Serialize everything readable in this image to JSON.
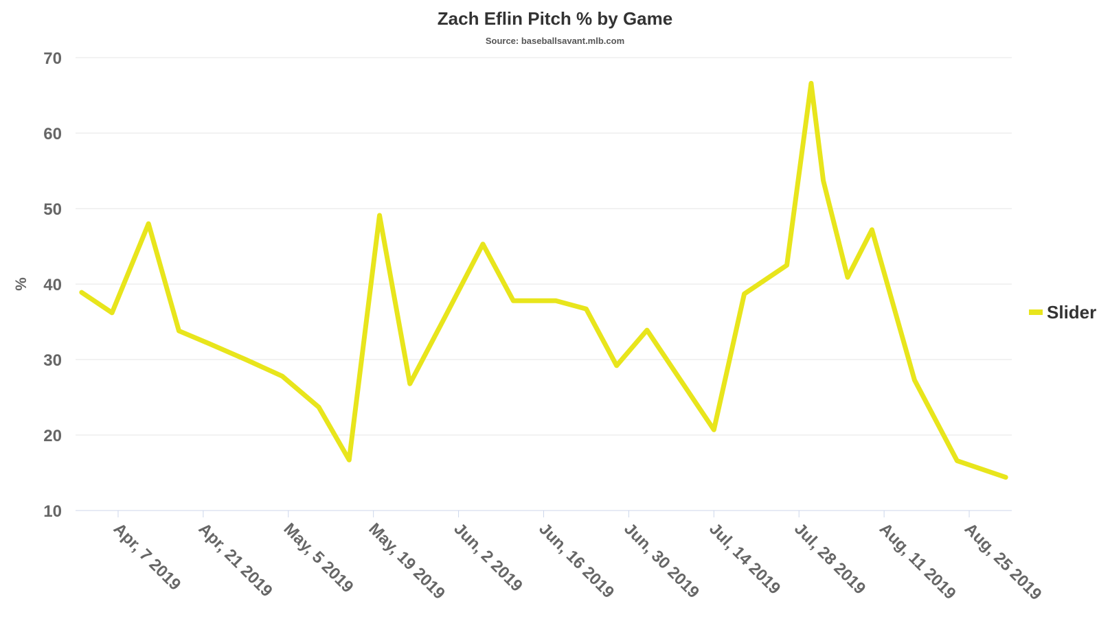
{
  "chart_data": {
    "type": "line",
    "title": "Zach Eflin Pitch % by Game",
    "subtitle": "Source: baseballsavant.mlb.com",
    "y_label": "%",
    "x": [
      "2019-04-01",
      "2019-04-06",
      "2019-04-12",
      "2019-04-17",
      "2019-04-22",
      "2019-04-28",
      "2019-05-04",
      "2019-05-10",
      "2019-05-15",
      "2019-05-20",
      "2019-05-25",
      "2019-05-31",
      "2019-06-06",
      "2019-06-11",
      "2019-06-18",
      "2019-06-23",
      "2019-06-28",
      "2019-07-03",
      "2019-07-14",
      "2019-07-19",
      "2019-07-26",
      "2019-07-30",
      "2019-08-01",
      "2019-08-05",
      "2019-08-09",
      "2019-08-16",
      "2019-08-23",
      "2019-08-31"
    ],
    "series": [
      {
        "name": "Slider",
        "color": "#e8e51c",
        "values": [
          38.9,
          36.2,
          48.0,
          33.8,
          32.1,
          30.0,
          27.8,
          23.7,
          16.7,
          49.1,
          26.8,
          36.0,
          45.3,
          37.8,
          37.8,
          36.7,
          29.2,
          33.9,
          20.7,
          38.7,
          42.5,
          66.6,
          53.7,
          40.9,
          47.2,
          27.3,
          16.6,
          14.4
        ]
      }
    ],
    "xlim": [
      "2019-03-31",
      "2019-09-01"
    ],
    "xticks": [
      {
        "value": "2019-04-07",
        "label": "Apr, 7 2019"
      },
      {
        "value": "2019-04-21",
        "label": "Apr, 21 2019"
      },
      {
        "value": "2019-05-05",
        "label": "May, 5 2019"
      },
      {
        "value": "2019-05-19",
        "label": "May, 19 2019"
      },
      {
        "value": "2019-06-02",
        "label": "Jun, 2 2019"
      },
      {
        "value": "2019-06-16",
        "label": "Jun, 16 2019"
      },
      {
        "value": "2019-06-30",
        "label": "Jun, 30 2019"
      },
      {
        "value": "2019-07-14",
        "label": "Jul, 14 2019"
      },
      {
        "value": "2019-07-28",
        "label": "Jul, 28 2019"
      },
      {
        "value": "2019-08-11",
        "label": "Aug, 11 2019"
      },
      {
        "value": "2019-08-25",
        "label": "Aug, 25 2019"
      }
    ],
    "ylim": [
      10,
      70
    ],
    "yticks": [
      10,
      20,
      30,
      40,
      50,
      60,
      70
    ],
    "grid": true,
    "legend": "right"
  }
}
